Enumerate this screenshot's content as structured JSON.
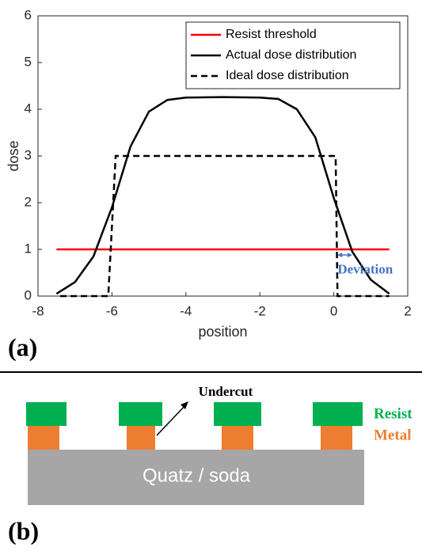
{
  "chart_data": {
    "type": "line",
    "xlabel": "position",
    "ylabel": "dose",
    "xlim": [
      -8,
      2
    ],
    "xticks": [
      -8,
      -6,
      -4,
      -2,
      0,
      2
    ],
    "ylim": [
      0,
      6
    ],
    "yticks": [
      0,
      1,
      2,
      3,
      4,
      5,
      6
    ],
    "grid": false,
    "legend": "upper right",
    "annotation": "Deviation",
    "series": [
      {
        "name": "Resist threshold",
        "color": "#ff0000",
        "dashed": false,
        "x": [
          -7.5,
          1.5
        ],
        "values": [
          1,
          1
        ]
      },
      {
        "name": "Actual dose distribution",
        "color": "#000000",
        "dashed": false,
        "x": [
          -7.5,
          -7,
          -6.5,
          -6,
          -5.5,
          -5,
          -4.5,
          -4,
          -3,
          -2,
          -1.5,
          -1,
          -0.5,
          0,
          0.5,
          1,
          1.5
        ],
        "values": [
          0.05,
          0.3,
          0.85,
          1.9,
          3.2,
          3.95,
          4.2,
          4.25,
          4.26,
          4.25,
          4.22,
          4.0,
          3.4,
          2.1,
          0.95,
          0.35,
          0.05
        ]
      },
      {
        "name": "Ideal dose distribution",
        "color": "#000000",
        "dashed": true,
        "x": [
          -7.4,
          -6.1,
          -5.9,
          0.05,
          0.1,
          1.5
        ],
        "values": [
          0,
          0,
          3,
          3,
          0,
          0
        ]
      }
    ]
  },
  "panel_labels": [
    "(a)",
    "(b)"
  ],
  "diagram": {
    "undercut": "Undercut",
    "substrate": "Quatz / soda",
    "resist": "Resist",
    "metal": "Metal"
  }
}
